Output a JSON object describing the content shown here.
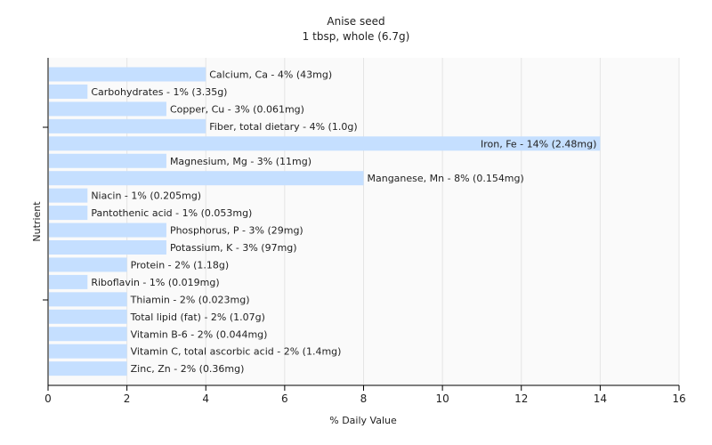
{
  "chart_data": {
    "type": "bar",
    "orientation": "horizontal",
    "title": "Anise seed",
    "subtitle": "1 tbsp, whole (6.7g)",
    "xlabel": "% Daily Value",
    "ylabel": "Nutrient",
    "xlim": [
      0,
      16
    ],
    "xticks": [
      0,
      2,
      4,
      6,
      8,
      10,
      12,
      14,
      16
    ],
    "grid": "vertical",
    "bar_color": "#c5dfff",
    "categories": [
      "Calcium, Ca",
      "Carbohydrates",
      "Copper, Cu",
      "Fiber, total dietary",
      "Iron, Fe",
      "Magnesium, Mg",
      "Manganese, Mn",
      "Niacin",
      "Pantothenic acid",
      "Phosphorus, P",
      "Potassium, K",
      "Protein",
      "Riboflavin",
      "Thiamin",
      "Total lipid (fat)",
      "Vitamin B-6",
      "Vitamin C, total ascorbic acid",
      "Zinc, Zn"
    ],
    "values": [
      4,
      1,
      3,
      4,
      14,
      3,
      8,
      1,
      1,
      3,
      3,
      2,
      1,
      2,
      2,
      2,
      2,
      2
    ],
    "labels": [
      "Calcium, Ca - 4% (43mg)",
      "Carbohydrates - 1% (3.35g)",
      "Copper, Cu - 3% (0.061mg)",
      "Fiber, total dietary - 4% (1.0g)",
      "Iron, Fe - 14% (2.48mg)",
      "Magnesium, Mg - 3% (11mg)",
      "Manganese, Mn - 8% (0.154mg)",
      "Niacin - 1% (0.205mg)",
      "Pantothenic acid - 1% (0.053mg)",
      "Phosphorus, P - 3% (29mg)",
      "Potassium, K - 3% (97mg)",
      "Protein - 2% (1.18g)",
      "Riboflavin - 1% (0.019mg)",
      "Thiamin - 2% (0.023mg)",
      "Total lipid (fat) - 2% (1.07g)",
      "Vitamin B-6 - 2% (0.044mg)",
      "Vitamin C, total ascorbic acid - 2% (1.4mg)",
      "Zinc, Zn - 2% (0.36mg)"
    ]
  }
}
